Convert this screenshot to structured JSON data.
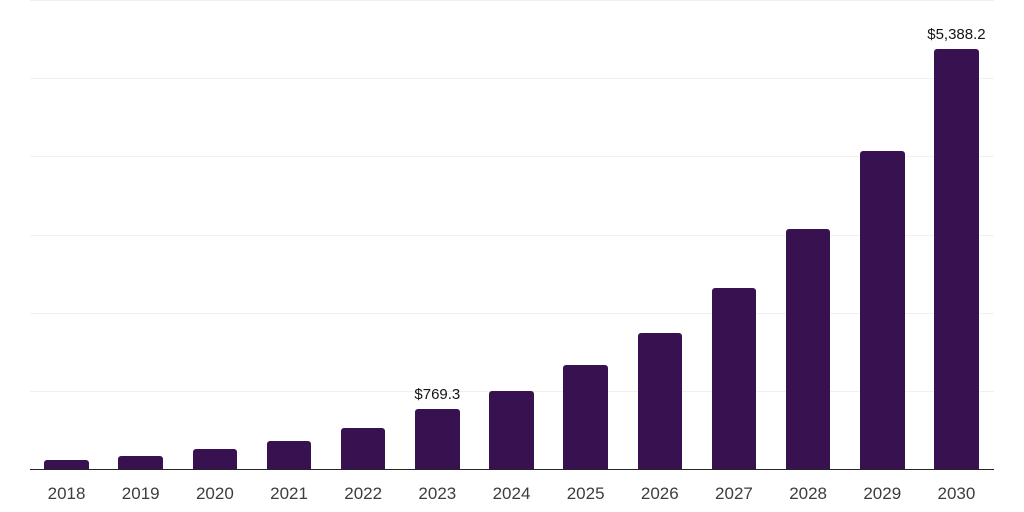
{
  "chart_data": {
    "type": "bar",
    "title": "",
    "xlabel": "",
    "ylabel": "",
    "categories": [
      "2018",
      "2019",
      "2020",
      "2021",
      "2022",
      "2023",
      "2024",
      "2025",
      "2026",
      "2027",
      "2028",
      "2029",
      "2030"
    ],
    "values": [
      125,
      175,
      255,
      360,
      535,
      769.3,
      1000,
      1330,
      1750,
      2320,
      3075,
      4080,
      5388.2
    ],
    "data_labels": [
      {
        "category": "2023",
        "text": "$769.3"
      },
      {
        "category": "2030",
        "text": "$5,388.2"
      }
    ],
    "ylim": [
      0,
      6000
    ],
    "gridline_step": 1000,
    "grid": "horizontal",
    "legend": "none",
    "y_axis_tick_labels": "none",
    "colors": {
      "bar": "#371150",
      "axis_line": "#262626",
      "gridline": "#f0f0f0",
      "tick_label": "#3d3d3d",
      "data_label": "#141414",
      "background": "#ffffff"
    }
  }
}
